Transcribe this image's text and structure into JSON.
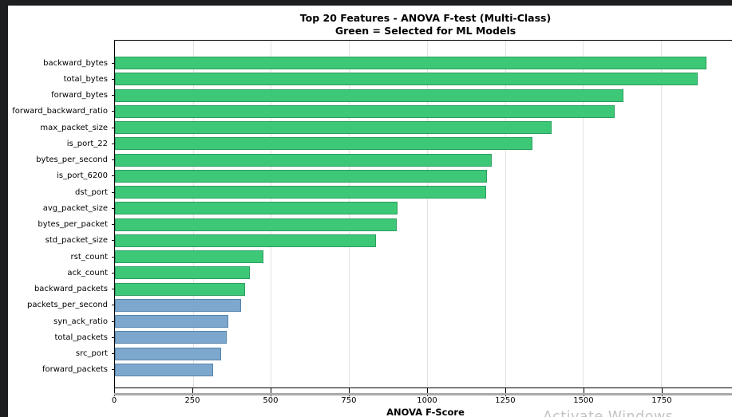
{
  "window": {
    "background_color": "#1d1e20",
    "figure_background_color": "#ffffff"
  },
  "watermark": {
    "text": "Activate Windows"
  },
  "chart_data": {
    "type": "bar",
    "orientation": "horizontal",
    "title": "Top 20 Features - ANOVA F-test (Multi-Class)",
    "subtitle": "Green = Selected for ML Models",
    "xlabel": "ANOVA F-Score",
    "ylabel": "",
    "xlim": [
      0,
      1990
    ],
    "xticks": [
      0,
      250,
      500,
      750,
      1000,
      1250,
      1500,
      1750
    ],
    "grid": "vertical gridlines, light gray, behind bars",
    "legend_position": "none (color encodes selection: green = selected, blue = not selected)",
    "categories": [
      "backward_bytes",
      "total_bytes",
      "forward_bytes",
      "forward_backward_ratio",
      "max_packet_size",
      "is_port_22",
      "bytes_per_second",
      "is_port_6200",
      "dst_port",
      "avg_packet_size",
      "bytes_per_packet",
      "std_packet_size",
      "rst_count",
      "ack_count",
      "backward_packets",
      "packets_per_second",
      "syn_ack_ratio",
      "total_packets",
      "src_port",
      "forward_packets"
    ],
    "values": [
      1895,
      1867,
      1630,
      1600,
      1400,
      1337,
      1207,
      1192,
      1189,
      905,
      903,
      836,
      477,
      431,
      418,
      403,
      362,
      358,
      339,
      314
    ],
    "selected_for_ml": [
      true,
      true,
      true,
      true,
      true,
      true,
      true,
      true,
      true,
      true,
      true,
      true,
      true,
      true,
      true,
      false,
      false,
      false,
      false,
      false
    ],
    "colors": {
      "selected_fill": "#3dc878",
      "selected_edge": "#2b9e5f",
      "unselected_fill": "#7da7cd",
      "unselected_edge": "#5584ad",
      "gridline": "#e2e2e2",
      "tick_label": "#000000"
    }
  }
}
